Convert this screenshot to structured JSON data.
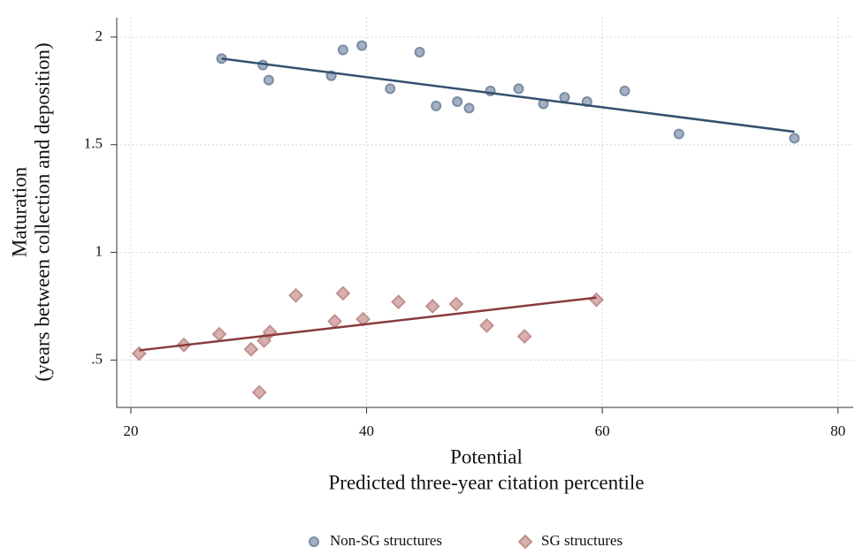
{
  "chart_data": {
    "type": "scatter",
    "ylabel": [
      "Maturation",
      "(years between collection and deposition)"
    ],
    "xlabel": [
      "Potential",
      "Predicted three-year citation percentile"
    ],
    "xlim": [
      18.8,
      81.3
    ],
    "ylim": [
      0.28,
      2.09
    ],
    "xticks": [
      20,
      40,
      60,
      80
    ],
    "yticks": [
      {
        "value": 0.5,
        "label": ".5"
      },
      1,
      1.5,
      2
    ],
    "grid": true,
    "legend": "bottom",
    "series": [
      {
        "name": "Non-SG structures",
        "marker": "circle",
        "color": "#a3b1c3",
        "edge": "#7c8ca3",
        "x": [
          27.7,
          31.2,
          31.7,
          37.0,
          38.0,
          39.6,
          42.0,
          44.5,
          45.9,
          47.7,
          48.7,
          50.5,
          52.9,
          55.0,
          56.8,
          58.7,
          61.9,
          66.5,
          76.3
        ],
        "values": [
          1.9,
          1.87,
          1.8,
          1.82,
          1.94,
          1.96,
          1.76,
          1.93,
          1.68,
          1.7,
          1.67,
          1.75,
          1.76,
          1.69,
          1.72,
          1.7,
          1.75,
          1.55,
          1.53
        ],
        "fit": {
          "color": "#34506e",
          "x": [
            27.7,
            76.3
          ],
          "values": [
            1.9,
            1.56
          ]
        }
      },
      {
        "name": "SG structures",
        "marker": "diamond",
        "color": "#d8b0ae",
        "edge": "#bf918f",
        "x": [
          20.7,
          24.5,
          27.5,
          30.2,
          30.9,
          31.3,
          31.8,
          34.0,
          37.3,
          38.0,
          39.7,
          42.7,
          45.6,
          47.6,
          50.2,
          53.4,
          59.5
        ],
        "values": [
          0.53,
          0.57,
          0.62,
          0.55,
          0.35,
          0.59,
          0.63,
          0.8,
          0.68,
          0.81,
          0.69,
          0.77,
          0.75,
          0.76,
          0.66,
          0.61,
          0.78
        ],
        "fit": {
          "color": "#8a3b3b",
          "x": [
            20.7,
            59.5
          ],
          "values": [
            0.545,
            0.79
          ]
        }
      }
    ]
  }
}
